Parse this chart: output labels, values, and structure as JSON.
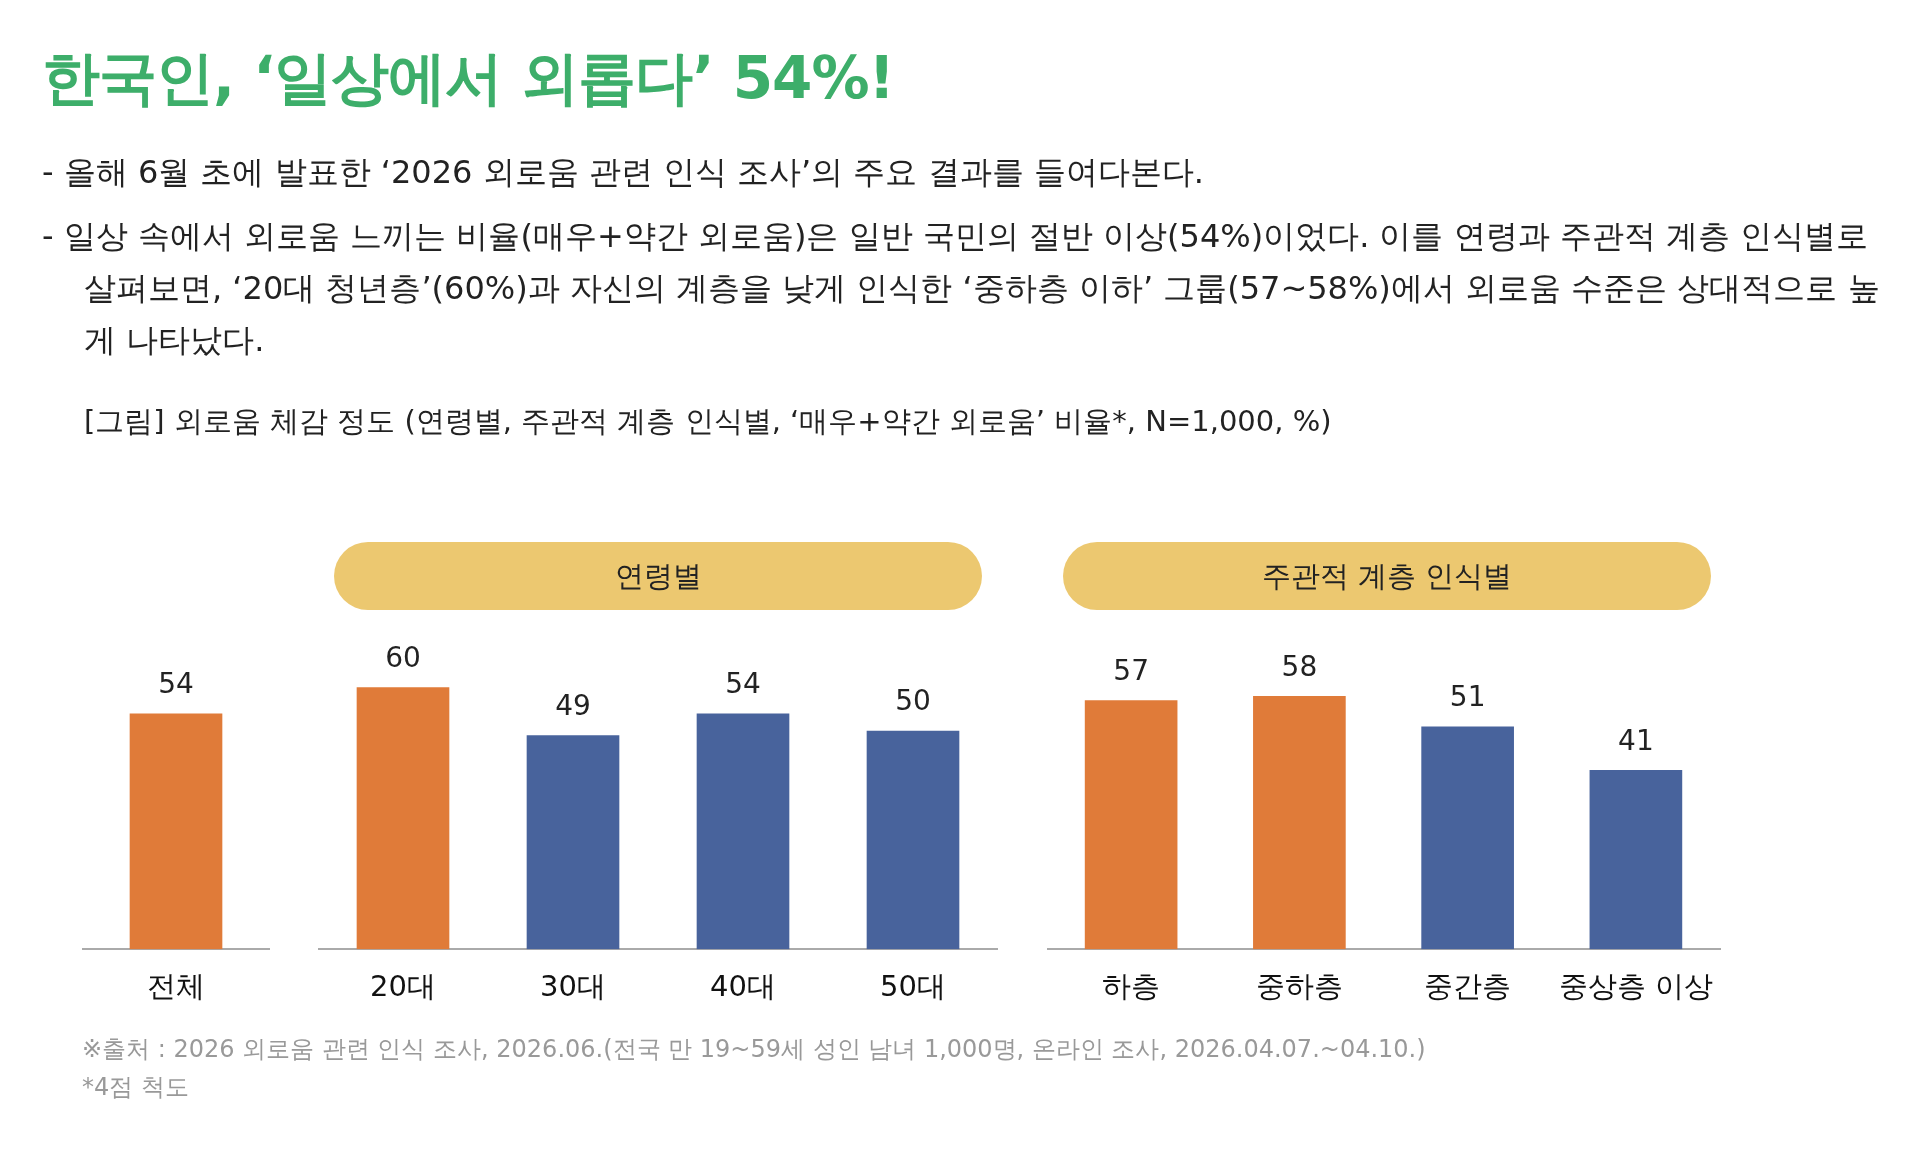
{
  "chart_data": [
    {
      "type": "other",
      "title": "한국인, ‘일상에서 외롭다’ 54%!",
      "annotations": [
        "- 올해 6월 초에 발표한 ‘2026 외로움 관련 인식 조사’의 주요 결과를 들여다본다.",
        "- 일상 속에서 외로움 느끼는 비율(매우+약간 외로움)은 일반 국민의 절반 이상(54%)이었다. 이를 연령과 주관적 계층 인식별로 살펴보면, ‘20대 청년층’(60%)과 자신의 계층을 낮게 인식한 ‘중하층 이하’ 그룹(57~58%)에서 외로움 수준은 상대적으로 높게 나타났다.",
        "[그림] 외로움 체감 정도 (연령별, 주관적 계층 인식별, ‘매우+약간 외로움’ 비율*, N=1,000, %)"
      ]
    },
    {
      "type": "bar",
      "categories": [
        "전체"
      ],
      "values": [
        54
      ],
      "colors": [
        "#e07b39"
      ],
      "data_labels": true
    },
    {
      "type": "bar",
      "title": "연령별",
      "categories": [
        "20대",
        "30대",
        "40대",
        "50대"
      ],
      "values": [
        60,
        49,
        54,
        50
      ],
      "colors": [
        "#e07b39",
        "#48639c",
        "#48639c",
        "#48639c"
      ],
      "data_labels": true
    },
    {
      "type": "bar",
      "title": "주관적 계층 인식별",
      "categories": [
        "하층",
        "중하층",
        "중간층",
        "중상층 이상"
      ],
      "values": [
        57,
        58,
        51,
        41
      ],
      "colors": [
        "#e07b39",
        "#e07b39",
        "#48639c",
        "#48639c"
      ],
      "data_labels": true
    },
    {
      "type": "other",
      "annotations": [
        "※출처 : 2026 외로움 관련 인식 조사, 2026.06.(전국 만 19~59세 성인 남녀 1,000명, 온라인 조사, 2026.04.07.~04.10.)",
        "*4점 척도"
      ]
    }
  ]
}
